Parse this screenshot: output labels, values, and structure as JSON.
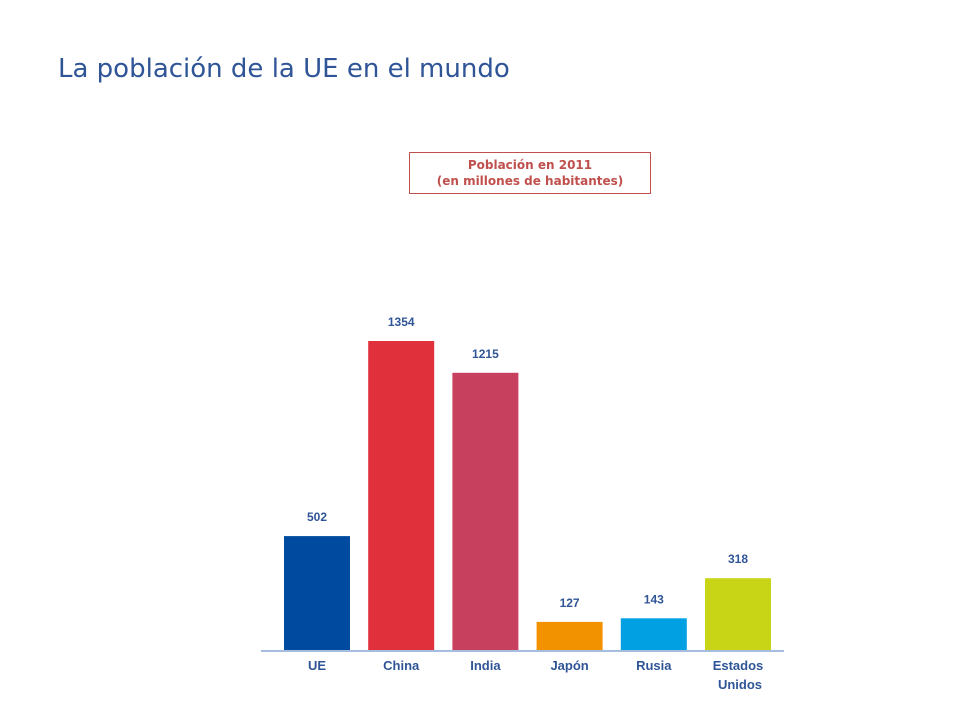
{
  "page": {
    "title": "La población de la UE en el mundo"
  },
  "legend": {
    "line1": "Población en 2011",
    "line2": "(en millones de habitantes)"
  },
  "chart_data": {
    "type": "bar",
    "title": "Población en 2011",
    "subtitle": "(en millones de habitantes)",
    "categories": [
      "UE",
      "China",
      "India",
      "Japón",
      "Rusia",
      "Estados Unidos"
    ],
    "category_label_lines": [
      [
        "UE"
      ],
      [
        "China"
      ],
      [
        "India"
      ],
      [
        "Japón"
      ],
      [
        "Rusia"
      ],
      [
        "Estados",
        "Unidos"
      ]
    ],
    "values": [
      502,
      1354,
      1215,
      127,
      143,
      318
    ],
    "colors": [
      "#004a9f",
      "#e0303c",
      "#c7405e",
      "#f39200",
      "#00a0e3",
      "#c8d416"
    ],
    "ylim": [
      0,
      1400
    ],
    "grid": false,
    "value_labels": true,
    "axis_color": "#a7bde0",
    "label_color": "#2f5597"
  }
}
